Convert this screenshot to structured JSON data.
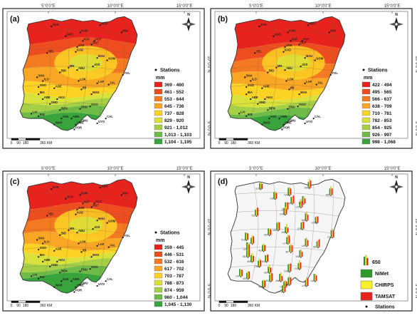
{
  "panels": [
    {
      "id": "a",
      "label": "(a)",
      "lon_labels": [
        "5°0'0\"E",
        "10°0'0\"E",
        "15°0'0\"E"
      ],
      "lat_labels": [
        "10°0'0\"N",
        "5°0'0\"N"
      ],
      "north": "N",
      "scale": [
        "0",
        "90",
        "180",
        "360 KM"
      ],
      "stations_label": "Stations",
      "unit": "mm",
      "legend": [
        {
          "range": "369 - 460",
          "color": "#e8231e"
        },
        {
          "range": "461 - 552",
          "color": "#ee4e1f"
        },
        {
          "range": "553 - 644",
          "color": "#f47a22"
        },
        {
          "range": "645 - 736",
          "color": "#f8a623"
        },
        {
          "range": "737 - 828",
          "color": "#fcd225"
        },
        {
          "range": "829 - 920",
          "color": "#d8e23a"
        },
        {
          "range": "921 - 1,012",
          "color": "#a5d045"
        },
        {
          "range": "1,013 - 1,103",
          "color": "#6fbb47"
        },
        {
          "range": "1,104 - 1,195",
          "color": "#38a53c"
        }
      ]
    },
    {
      "id": "b",
      "label": "(b)",
      "lon_labels": [
        "5°0'0\"E",
        "10°0'0\"E",
        "15°0'0\"E"
      ],
      "lat_labels": [
        "10°0'0\"N",
        "5°0'0\"N"
      ],
      "north": "N",
      "scale": [
        "0",
        "90",
        "180",
        "360 KM"
      ],
      "stations_label": "Stations",
      "unit": "mm",
      "legend": [
        {
          "range": "422 - 494",
          "color": "#e8231e"
        },
        {
          "range": "495 - 565",
          "color": "#ee4e1f"
        },
        {
          "range": "566 - 637",
          "color": "#f47a22"
        },
        {
          "range": "638 - 709",
          "color": "#f8a623"
        },
        {
          "range": "710 - 781",
          "color": "#fcd225"
        },
        {
          "range": "782 - 853",
          "color": "#d8e23a"
        },
        {
          "range": "854 - 925",
          "color": "#a5d045"
        },
        {
          "range": "926 - 997",
          "color": "#6fbb47"
        },
        {
          "range": "998 - 1,068",
          "color": "#38a53c"
        }
      ]
    },
    {
      "id": "c",
      "label": "(c)",
      "lon_labels": [
        "5°0'0\"E",
        "10°0'0\"E",
        "15°0'0\"E"
      ],
      "lat_labels": [
        "10°0'0\"N",
        "5°0'0\"N"
      ],
      "north": "N",
      "scale": [
        "0",
        "90",
        "180",
        "360 KM"
      ],
      "stations_label": "Stations",
      "unit": "mm",
      "legend": [
        {
          "range": "359 - 445",
          "color": "#e8231e"
        },
        {
          "range": "446 - 531",
          "color": "#ee4e1f"
        },
        {
          "range": "532 - 616",
          "color": "#f47a22"
        },
        {
          "range": "617 - 702",
          "color": "#f8a623"
        },
        {
          "range": "703 - 787",
          "color": "#fcd225"
        },
        {
          "range": "788 - 873",
          "color": "#d8e23a"
        },
        {
          "range": "874 - 959",
          "color": "#a5d045"
        },
        {
          "range": "960 - 1,044",
          "color": "#6fbb47"
        },
        {
          "range": "1,045 - 1,130",
          "color": "#38a53c"
        }
      ]
    },
    {
      "id": "d",
      "label": "(d)",
      "lon_labels": [
        "5°0'0\"E",
        "10°0'0\"E",
        "15°0'0\"E"
      ],
      "lat_labels": [
        "10°0'0\"N",
        "5°0'0\"N"
      ],
      "north": "N",
      "scale": [
        "0",
        "90",
        "180",
        "360 KM"
      ],
      "bar_value": "650",
      "stations_label": "Stations",
      "legend": [
        {
          "range": "NiMet",
          "color": "#2e9a2e"
        },
        {
          "range": "CHIRPS",
          "color": "#f7f02a"
        },
        {
          "range": "TAMSAT",
          "color": "#e8231e"
        }
      ]
    }
  ],
  "stations": [
    {
      "name": "SOK"
    },
    {
      "name": "GUS"
    },
    {
      "name": "KAN"
    },
    {
      "name": "NGU"
    },
    {
      "name": "KAT"
    },
    {
      "name": "POT"
    },
    {
      "name": "DUT"
    },
    {
      "name": "MAI"
    },
    {
      "name": "ZAR"
    },
    {
      "name": "YEL"
    },
    {
      "name": "KAD"
    },
    {
      "name": "BAU"
    },
    {
      "name": "GOM"
    },
    {
      "name": "JOS"
    },
    {
      "name": "MN"
    },
    {
      "name": "ABU"
    },
    {
      "name": "BID"
    },
    {
      "name": "SHA"
    },
    {
      "name": "ILO"
    },
    {
      "name": "LOK"
    },
    {
      "name": "OSO"
    },
    {
      "name": "ADE"
    },
    {
      "name": "IBI"
    },
    {
      "name": "YOL"
    },
    {
      "name": "JAL"
    },
    {
      "name": "MAK"
    },
    {
      "name": "LAF"
    },
    {
      "name": "OGO"
    },
    {
      "name": "AKU"
    },
    {
      "name": "ENU"
    },
    {
      "name": "BEN"
    },
    {
      "name": "ABE"
    },
    {
      "name": "LAI"
    },
    {
      "name": "IKE"
    },
    {
      "name": "ASA"
    },
    {
      "name": "AWK"
    },
    {
      "name": "OWE"
    },
    {
      "name": "WAR"
    },
    {
      "name": "UMU"
    },
    {
      "name": "UYO"
    },
    {
      "name": "POR"
    },
    {
      "name": "CAL"
    },
    {
      "name": "OND"
    },
    {
      "name": "IBA"
    }
  ]
}
